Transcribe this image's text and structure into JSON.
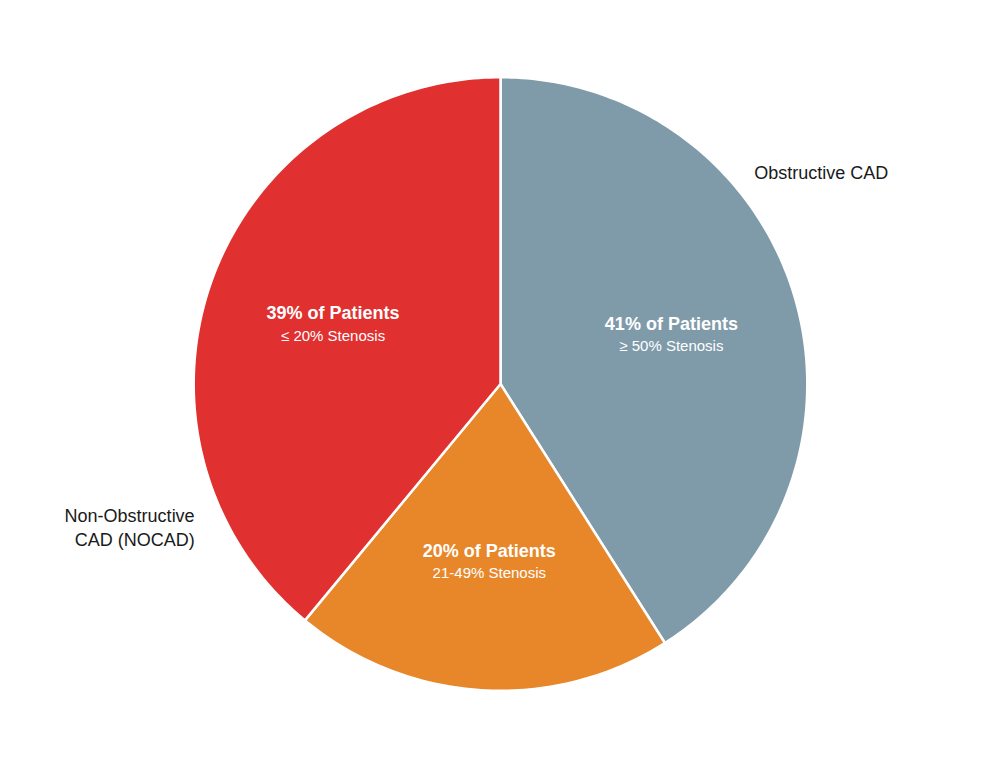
{
  "chart_data": {
    "type": "pie",
    "categories": [
      "≥ 50% Stenosis",
      "21-49% Stenosis",
      "≤ 20% Stenosis"
    ],
    "values": [
      41,
      20,
      39
    ],
    "value_labels": [
      "41% of Patients",
      "20% of Patients",
      "39% of Patients"
    ],
    "data_labels": true,
    "colors": [
      "#7f9baa",
      "#e8872a",
      "#e03030"
    ],
    "annotations": [
      "Obstructive CAD",
      "Non-Obstructive\nCAD (NOCAD)"
    ],
    "tick_labels": false
  }
}
